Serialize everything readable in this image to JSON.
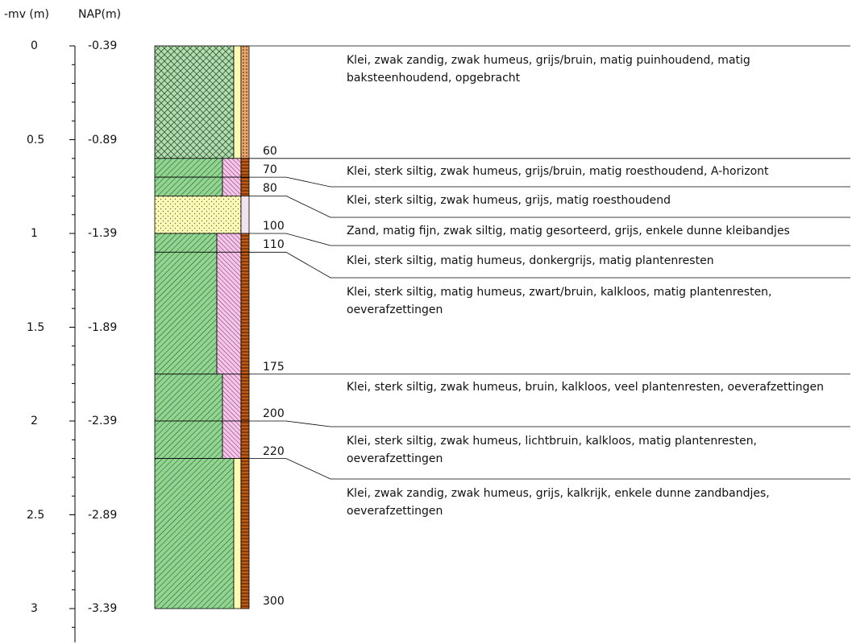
{
  "header": {
    "mv_label": "-mv (m)",
    "nap_label": "NAP(m)"
  },
  "axis": {
    "depth_ticks": [
      "0",
      "0.5",
      "1",
      "1.5",
      "2",
      "2.5",
      "3"
    ],
    "nap_ticks": [
      "-0.39",
      "-0.89",
      "-1.39",
      "-1.89",
      "-2.39",
      "-2.89",
      "-3.39"
    ]
  },
  "colors": {
    "clay": "#92d491",
    "clay_fill": "#b7dcb5",
    "sand": "#fdfbb3",
    "humus_pink": "#f4c6ea",
    "brown": "#c55a11",
    "brown_light": "#e8a46f",
    "line": "#000000"
  },
  "layers": [
    {
      "top": 0,
      "bottom": 60,
      "type": "clay-crosshatch",
      "humus": "light-yellow",
      "brown": "dots"
    },
    {
      "top": 60,
      "bottom": 70,
      "type": "clay",
      "humus": "pink",
      "brown": "solid"
    },
    {
      "top": 70,
      "bottom": 80,
      "type": "clay",
      "humus": "pink",
      "brown": "solid"
    },
    {
      "top": 80,
      "bottom": 100,
      "type": "sand",
      "humus": "none",
      "brown": "light"
    },
    {
      "top": 100,
      "bottom": 110,
      "type": "clay",
      "humus": "pink",
      "brown": "solid"
    },
    {
      "top": 110,
      "bottom": 175,
      "type": "clay",
      "humus": "pink",
      "brown": "solid"
    },
    {
      "top": 175,
      "bottom": 200,
      "type": "clay",
      "humus": "pink",
      "brown": "solid"
    },
    {
      "top": 200,
      "bottom": 220,
      "type": "clay",
      "humus": "pink",
      "brown": "solid"
    },
    {
      "top": 220,
      "bottom": 300,
      "type": "clay",
      "humus": "yellow",
      "brown": "solid"
    }
  ],
  "depth_labels": [
    "60",
    "70",
    "80",
    "100",
    "110",
    "175",
    "200",
    "220",
    "300"
  ],
  "descriptions": [
    {
      "text": "Klei, zwak zandig, zwak humeus, grijs/bruin, matig puinhoudend, matig baksteenhoudend, opgebracht"
    },
    {
      "text": "Klei, sterk siltig, zwak humeus, grijs/bruin, matig roesthoudend, A-horizont"
    },
    {
      "text": "Klei, sterk siltig, zwak humeus, grijs, matig roesthoudend"
    },
    {
      "text": "Zand, matig fijn, zwak siltig, matig gesorteerd, grijs, enkele dunne kleibandjes"
    },
    {
      "text": "Klei, sterk siltig, matig humeus, donkergrijs, matig plantenresten"
    },
    {
      "text": "Klei, sterk siltig, matig humeus, zwart/bruin, kalkloos, matig plantenresten, oeverafzettingen"
    },
    {
      "text": "Klei, sterk siltig, zwak humeus, bruin, kalkloos, veel plantenresten, oeverafzettingen"
    },
    {
      "text": "Klei, sterk siltig, zwak humeus, lichtbruin, kalkloos, matig plantenresten, oeverafzettingen"
    },
    {
      "text": "Klei, zwak zandig, zwak humeus, grijs, kalkrijk, enkele dunne zandbandjes, oeverafzettingen"
    }
  ]
}
